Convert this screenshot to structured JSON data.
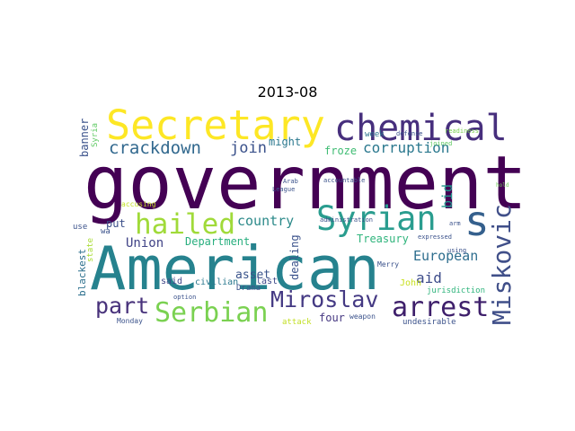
{
  "figure": {
    "title": "2013-08"
  },
  "palette": {
    "dark_purple": "#440154",
    "indigo": "#3b528b",
    "teal": "#21918c",
    "green": "#5ec962",
    "yellow": "#fde725"
  },
  "words": [
    {
      "text": "government",
      "color": "#440154"
    },
    {
      "text": "American",
      "color": "#26828e"
    },
    {
      "text": "Secretary",
      "color": "#fde725"
    },
    {
      "text": "chemical",
      "color": "#472f7d"
    },
    {
      "text": "Syrian",
      "color": "#2a9d8f"
    },
    {
      "text": "s",
      "color": "#35608d"
    },
    {
      "text": "hailed",
      "color": "#a0da39"
    },
    {
      "text": "Serbian",
      "color": "#7ad151"
    },
    {
      "text": "Miroslav",
      "color": "#443983"
    },
    {
      "text": "arrest",
      "color": "#3e1f6b"
    },
    {
      "text": "Miskovic",
      "color": "#404f89"
    },
    {
      "text": "part",
      "color": "#48327b"
    },
    {
      "text": "crackdown",
      "color": "#31688e"
    },
    {
      "text": "corruption",
      "color": "#2a788e"
    },
    {
      "text": "join",
      "color": "#3b528b"
    },
    {
      "text": "country",
      "color": "#2c8a8a"
    },
    {
      "text": "froze",
      "color": "#3fbc73"
    },
    {
      "text": "might",
      "color": "#2a788e"
    },
    {
      "text": "bid",
      "color": "#1f968b"
    },
    {
      "text": "Union",
      "color": "#414487"
    },
    {
      "text": "Department",
      "color": "#29af7f"
    },
    {
      "text": "put",
      "color": "#3c4f8a"
    },
    {
      "text": "European",
      "color": "#2e6e8e"
    },
    {
      "text": "aid",
      "color": "#3d4c8a"
    },
    {
      "text": "Treasury",
      "color": "#2fb47c"
    },
    {
      "text": "asset",
      "color": "#3a538b"
    },
    {
      "text": "dealing",
      "color": "#3b528b"
    },
    {
      "text": "four",
      "color": "#453781"
    },
    {
      "text": "banner",
      "color": "#3b528b"
    },
    {
      "text": "blackest",
      "color": "#2d708e"
    },
    {
      "text": "state",
      "color": "#a8db34"
    },
    {
      "text": "wa",
      "color": "#3b528b"
    },
    {
      "text": "use",
      "color": "#3b528b"
    },
    {
      "text": "Syria",
      "color": "#5ec962"
    },
    {
      "text": "accusing",
      "color": "#c2df23"
    },
    {
      "text": "said",
      "color": "#404688"
    },
    {
      "text": "civilian",
      "color": "#2a788e"
    },
    {
      "text": "last",
      "color": "#3e4989"
    },
    {
      "text": "week",
      "color": "#2c728e"
    },
    {
      "text": "defense",
      "color": "#3b528b"
    },
    {
      "text": "readiness",
      "color": "#7ad151"
    },
    {
      "text": "joined",
      "color": "#5ec962"
    },
    {
      "text": "hold",
      "color": "#6ece58"
    },
    {
      "text": "Arab",
      "color": "#3b528b"
    },
    {
      "text": "League",
      "color": "#3b528b"
    },
    {
      "text": "accountable",
      "color": "#3b528b"
    },
    {
      "text": "administration",
      "color": "#3b528b"
    },
    {
      "text": "expressed",
      "color": "#3b528b"
    },
    {
      "text": "using",
      "color": "#3b528b"
    },
    {
      "text": "arm",
      "color": "#3b528b"
    },
    {
      "text": "John",
      "color": "#c8e020"
    },
    {
      "text": "Merry",
      "color": "#3b528b"
    },
    {
      "text": "jurisdiction",
      "color": "#2fb47c"
    },
    {
      "text": "Drama",
      "color": "#3b528b"
    },
    {
      "text": "option",
      "color": "#3b528b"
    },
    {
      "text": "Monday",
      "color": "#3b528b"
    },
    {
      "text": "attack",
      "color": "#c2df23"
    },
    {
      "text": "weapon",
      "color": "#3b528b"
    },
    {
      "text": "undesirable",
      "color": "#3b528b"
    }
  ]
}
